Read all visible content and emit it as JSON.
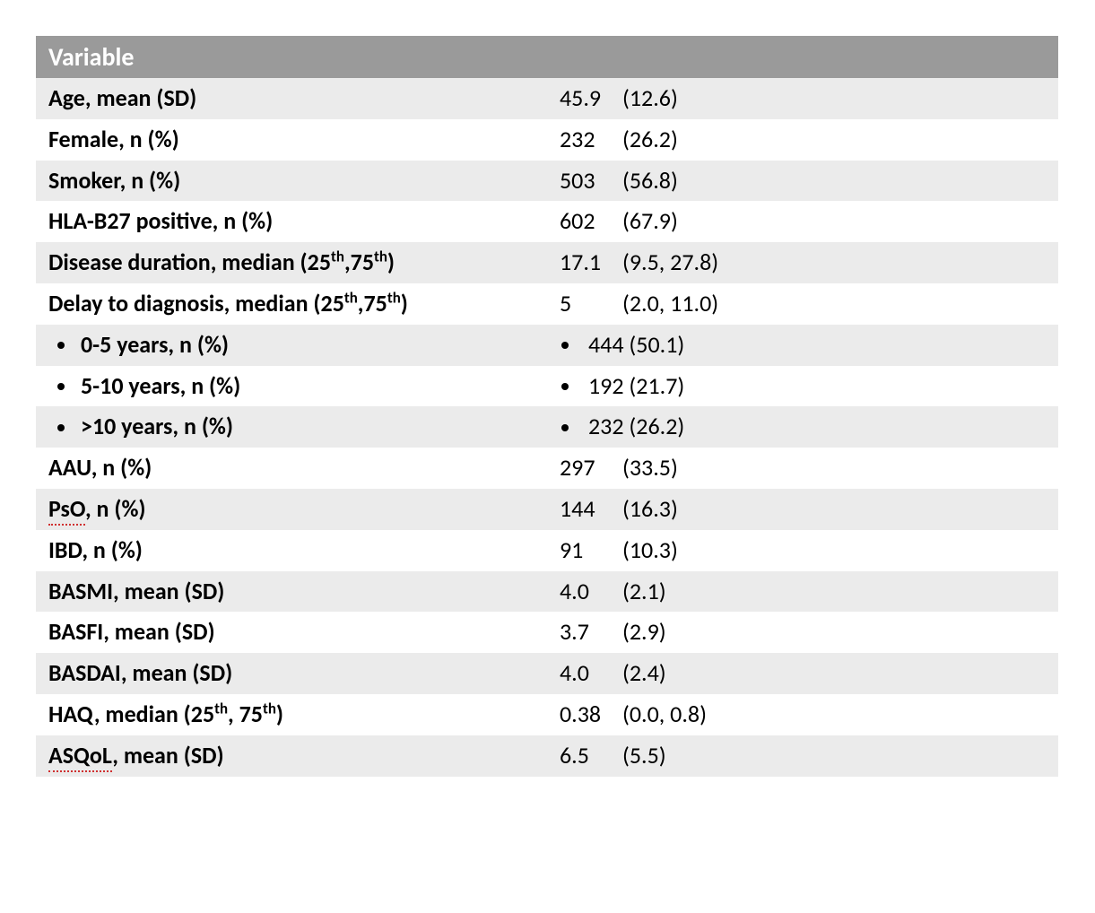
{
  "table": {
    "header_label": "Variable",
    "header_bg": "#9a9a9a",
    "row_bg_even": "#ebebeb",
    "row_bg_odd": "#ffffff",
    "rows": [
      {
        "label": "Age, mean (SD)",
        "num": "45.9",
        "paren": "(12.6)",
        "sub": false,
        "spellerr": false
      },
      {
        "label": "Female, n (%)",
        "num": "232",
        "paren": "(26.2)",
        "sub": false,
        "spellerr": false
      },
      {
        "label": "Smoker, n (%)",
        "num": "503",
        "paren": "(56.8)",
        "sub": false,
        "spellerr": false
      },
      {
        "label": "HLA-B27 positive, n (%)",
        "num": "602",
        "paren": "(67.9)",
        "sub": false,
        "spellerr": false
      },
      {
        "label_html": "Disease duration, median (25<sup>th</sup>,75<sup>th</sup>)",
        "num": "17.1",
        "paren": "(9.5, 27.8)",
        "sub": false,
        "spellerr": false
      },
      {
        "label_html": "Delay to diagnosis, median (25<sup>th</sup>,75<sup>th</sup>)",
        "num": "5",
        "paren": "(2.0, 11.0)",
        "sub": false,
        "spellerr": false
      },
      {
        "label": "0-5 years, n (%)",
        "num": "444",
        "paren": "(50.1)",
        "sub": true,
        "spellerr": false,
        "combined": true
      },
      {
        "label": "5-10 years, n (%)",
        "num": "192",
        "paren": "(21.7)",
        "sub": true,
        "spellerr": false,
        "combined": true
      },
      {
        "label": ">10 years, n (%)",
        "num": "232",
        "paren": "(26.2)",
        "sub": true,
        "spellerr": false,
        "combined": true
      },
      {
        "label": "AAU, n (%)",
        "num": "297",
        "paren": "(33.5)",
        "sub": false,
        "spellerr": false
      },
      {
        "label_html": "<span class=\"squiggle\">PsO</span>, n (%)",
        "num": "144",
        "paren": "(16.3)",
        "sub": false,
        "spellerr": true
      },
      {
        "label": "IBD, n (%)",
        "num": "91",
        "paren": "(10.3)",
        "sub": false,
        "spellerr": false
      },
      {
        "label": "BASMI, mean (SD)",
        "num": "4.0",
        "paren": "(2.1)",
        "sub": false,
        "spellerr": false
      },
      {
        "label": "BASFI, mean (SD)",
        "num": "3.7",
        "paren": "(2.9)",
        "sub": false,
        "spellerr": false
      },
      {
        "label": "BASDAI, mean (SD)",
        "num": "4.0",
        "paren": "(2.4)",
        "sub": false,
        "spellerr": false
      },
      {
        "label_html": "HAQ, median (25<sup>th</sup>, 75<sup>th</sup>)",
        "num": "0.38",
        "paren": "(0.0, 0.8)",
        "sub": false,
        "spellerr": false
      },
      {
        "label_html": "<span class=\"squiggle\">ASQoL</span>, mean (SD)",
        "num": "6.5",
        "paren": "(5.5)",
        "sub": false,
        "spellerr": true
      }
    ]
  }
}
